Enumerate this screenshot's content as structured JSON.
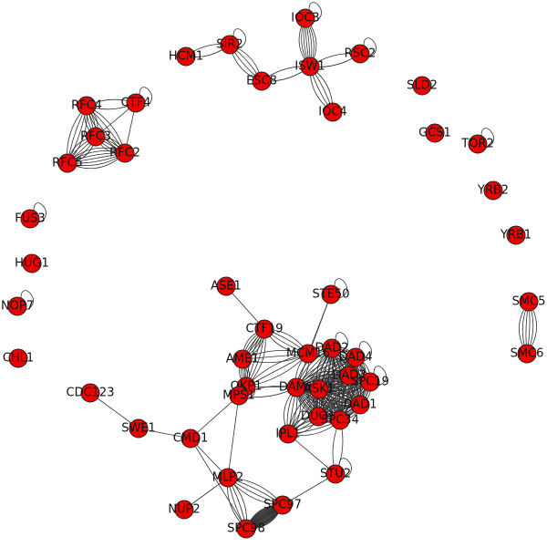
{
  "graph": {
    "node_color": "#ee0000",
    "edge_color": "#333333",
    "nodes": [
      {
        "id": "IOC3"
      },
      {
        "id": "SIR2"
      },
      {
        "id": "HCM1"
      },
      {
        "id": "RSC2"
      },
      {
        "id": "ESC8"
      },
      {
        "id": "ISW1"
      },
      {
        "id": "IOC4"
      },
      {
        "id": "SLD2"
      },
      {
        "id": "GCS1"
      },
      {
        "id": "TOR2"
      },
      {
        "id": "YRB2"
      },
      {
        "id": "YRB1"
      },
      {
        "id": "RFC4"
      },
      {
        "id": "CTF4"
      },
      {
        "id": "RFC3"
      },
      {
        "id": "RFC2"
      },
      {
        "id": "RFC5"
      },
      {
        "id": "FUS3"
      },
      {
        "id": "HUG1"
      },
      {
        "id": "NOP7"
      },
      {
        "id": "CHL1"
      },
      {
        "id": "SMC5"
      },
      {
        "id": "SMC6"
      },
      {
        "id": "ASE1"
      },
      {
        "id": "STE50"
      },
      {
        "id": "CTF19"
      },
      {
        "id": "DAD2"
      },
      {
        "id": "AME1"
      },
      {
        "id": "MCM16"
      },
      {
        "id": "DAD4"
      },
      {
        "id": "DAD3"
      },
      {
        "id": "SPC19"
      },
      {
        "id": "OKP1"
      },
      {
        "id": "DAM1"
      },
      {
        "id": "ASK1"
      },
      {
        "id": "DAD1"
      },
      {
        "id": "DUO1"
      },
      {
        "id": "SPC34"
      },
      {
        "id": "MPS1"
      },
      {
        "id": "IPL1"
      },
      {
        "id": "CDC123"
      },
      {
        "id": "SWE1"
      },
      {
        "id": "CMD1"
      },
      {
        "id": "STU2"
      },
      {
        "id": "MLP2"
      },
      {
        "id": "NUP2"
      },
      {
        "id": "SPC97"
      },
      {
        "id": "SPC98"
      }
    ],
    "edges": [
      [
        "HCM1",
        "SIR2",
        2
      ],
      [
        "SIR2",
        "ESC8",
        4
      ],
      [
        "SIR2",
        "SIR2",
        1
      ],
      [
        "ESC8",
        "ISW1",
        2
      ],
      [
        "IOC3",
        "IOC3",
        1
      ],
      [
        "IOC3",
        "ISW1",
        8
      ],
      [
        "ISW1",
        "RSC2",
        2
      ],
      [
        "RSC2",
        "RSC2",
        1
      ],
      [
        "ISW1",
        "IOC4",
        4
      ],
      [
        "TOR2",
        "TOR2",
        1
      ],
      [
        "SMC5",
        "SMC6",
        6
      ],
      [
        "RFC4",
        "CTF4",
        2
      ],
      [
        "CTF4",
        "CTF4",
        1
      ],
      [
        "RFC4",
        "RFC3",
        5
      ],
      [
        "RFC4",
        "RFC2",
        4
      ],
      [
        "RFC4",
        "RFC5",
        4
      ],
      [
        "RFC3",
        "RFC2",
        5
      ],
      [
        "RFC3",
        "RFC5",
        5
      ],
      [
        "RFC2",
        "RFC5",
        7
      ],
      [
        "CTF4",
        "RFC3",
        1
      ],
      [
        "CTF4",
        "RFC2",
        1
      ],
      [
        "FUS3",
        "FUS3",
        1
      ],
      [
        "NOP7",
        "NOP7",
        1
      ],
      [
        "ASE1",
        "CTF19",
        1
      ],
      [
        "STE50",
        "STE50",
        1
      ],
      [
        "STE50",
        "DAM1",
        1
      ],
      [
        "STE50",
        "MCM16",
        1
      ],
      [
        "CTF19",
        "AME1",
        6
      ],
      [
        "CTF19",
        "OKP1",
        5
      ],
      [
        "CTF19",
        "MCM16",
        4
      ],
      [
        "AME1",
        "OKP1",
        6
      ],
      [
        "AME1",
        "MCM16",
        3
      ],
      [
        "OKP1",
        "MCM16",
        3
      ],
      [
        "OKP1",
        "DAM1",
        1
      ],
      [
        "OKP1",
        "MPS1",
        1
      ],
      [
        "MPS1",
        "DAM1",
        2
      ],
      [
        "MPS1",
        "MPS1",
        1
      ],
      [
        "MPS1",
        "CMD1",
        1
      ],
      [
        "MPS1",
        "MLP2",
        1
      ],
      [
        "MCM16",
        "DAD2",
        2
      ],
      [
        "MCM16",
        "DAM1",
        2
      ],
      [
        "DAM1",
        "DAD2",
        6
      ],
      [
        "DAM1",
        "DAD4",
        6
      ],
      [
        "DAM1",
        "DAD3",
        7
      ],
      [
        "DAM1",
        "SPC19",
        7
      ],
      [
        "DAM1",
        "ASK1",
        8
      ],
      [
        "DAM1",
        "DAD1",
        7
      ],
      [
        "DAM1",
        "DUO1",
        8
      ],
      [
        "DAM1",
        "SPC34",
        8
      ],
      [
        "DAM1",
        "IPL1",
        5
      ],
      [
        "DAD2",
        "DAD2",
        1
      ],
      [
        "DAD2",
        "DAD4",
        5
      ],
      [
        "DAD2",
        "DAD3",
        5
      ],
      [
        "DAD2",
        "ASK1",
        5
      ],
      [
        "DAD2",
        "SPC19",
        4
      ],
      [
        "DAD2",
        "DAD1",
        4
      ],
      [
        "DAD2",
        "DUO1",
        4
      ],
      [
        "DAD2",
        "SPC34",
        4
      ],
      [
        "DAD4",
        "DAD4",
        1
      ],
      [
        "DAD4",
        "DAD3",
        5
      ],
      [
        "DAD4",
        "ASK1",
        5
      ],
      [
        "DAD4",
        "SPC19",
        4
      ],
      [
        "DAD4",
        "DAD1",
        4
      ],
      [
        "DAD4",
        "DUO1",
        4
      ],
      [
        "DAD4",
        "SPC34",
        4
      ],
      [
        "DAD3",
        "DAD3",
        1
      ],
      [
        "DAD3",
        "ASK1",
        5
      ],
      [
        "DAD3",
        "SPC19",
        5
      ],
      [
        "DAD3",
        "DAD1",
        5
      ],
      [
        "DAD3",
        "DUO1",
        4
      ],
      [
        "DAD3",
        "SPC34",
        4
      ],
      [
        "SPC19",
        "SPC19",
        1
      ],
      [
        "SPC19",
        "ASK1",
        5
      ],
      [
        "SPC19",
        "DAD1",
        5
      ],
      [
        "SPC19",
        "DUO1",
        4
      ],
      [
        "SPC19",
        "SPC34",
        4
      ],
      [
        "ASK1",
        "DAD1",
        5
      ],
      [
        "ASK1",
        "DUO1",
        6
      ],
      [
        "ASK1",
        "SPC34",
        6
      ],
      [
        "ASK1",
        "IPL1",
        4
      ],
      [
        "DAD1",
        "DUO1",
        5
      ],
      [
        "DAD1",
        "SPC34",
        5
      ],
      [
        "DUO1",
        "SPC34",
        6
      ],
      [
        "DUO1",
        "IPL1",
        4
      ],
      [
        "SPC34",
        "IPL1",
        4
      ],
      [
        "IPL1",
        "STU2",
        1
      ],
      [
        "SPC34",
        "STU2",
        2
      ],
      [
        "STU2",
        "STU2",
        1
      ],
      [
        "STU2",
        "SPC97",
        1
      ],
      [
        "CDC123",
        "SWE1",
        1
      ],
      [
        "SWE1",
        "CMD1",
        1
      ],
      [
        "CMD1",
        "MLP2",
        1
      ],
      [
        "CMD1",
        "SPC98",
        1
      ],
      [
        "MLP2",
        "NUP2",
        1
      ],
      [
        "MLP2",
        "SPC97",
        4
      ],
      [
        "MLP2",
        "SPC98",
        4
      ],
      [
        "SPC97",
        "SPC98",
        24
      ]
    ]
  }
}
